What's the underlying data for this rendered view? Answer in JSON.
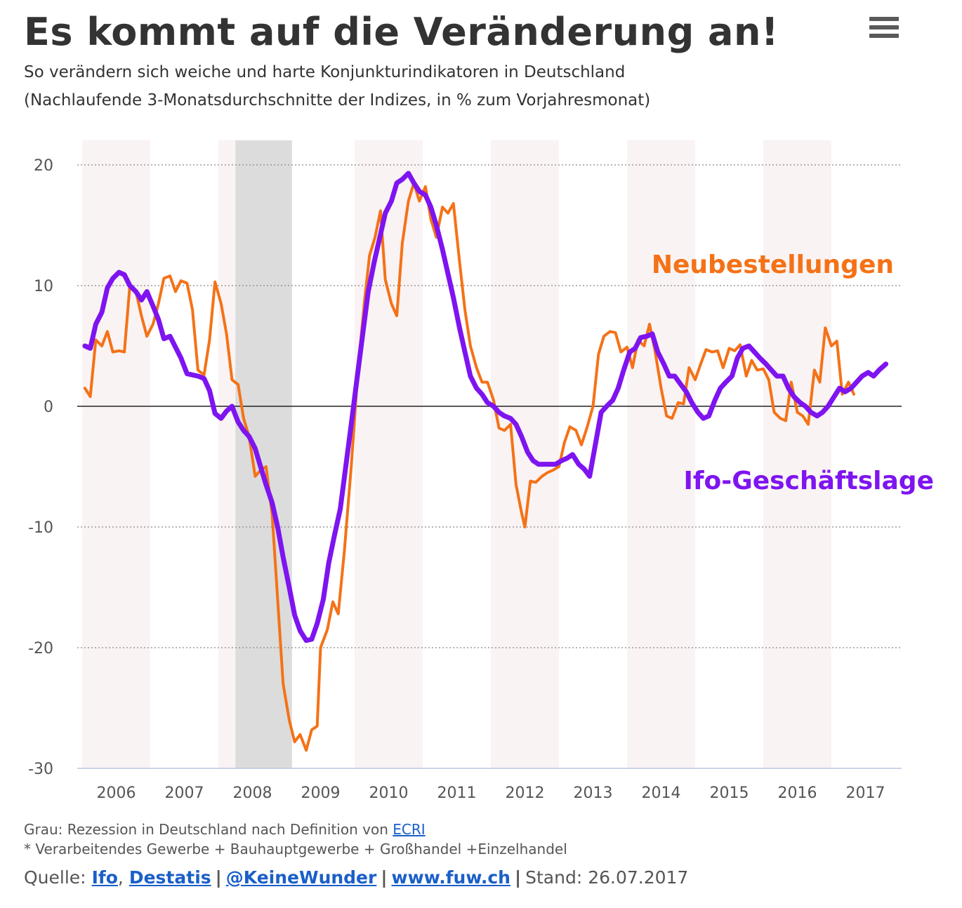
{
  "header": {
    "title": "Es kommt auf die Veränderung an!",
    "subtitle_line1": "So verändern sich weiche und harte Konjunkturindikatoren in Deutschland",
    "subtitle_line2": "(Nachlaufende 3-Monatsdurchschnitte der Indizes, in % zum Vorjahresmonat)"
  },
  "footer": {
    "note_prefix": "Grau: Rezession in Deutschland nach Definition von",
    "note_link": "ECRI",
    "footnote": "* Verarbeitendes Gewerbe + Bauhauptgewerbe + Großhandel +Einzelhandel",
    "source_prefix": "Quelle:",
    "source_ifo": "Ifo",
    "source_destatis": "Destatis",
    "source_twitter": "@KeineWunder",
    "source_site": "www.fuw.ch",
    "sep": "|",
    "comma": ",",
    "stand": "Stand: 26.07.2017"
  },
  "chart_data": {
    "type": "line",
    "title": "Es kommt auf die Veränderung an!",
    "xlabel": "",
    "ylabel": "",
    "ylim": [
      -30,
      20
    ],
    "xlim": [
      2005.5,
      2017.6
    ],
    "yticks": [
      20,
      10,
      0,
      -10,
      -20,
      -30
    ],
    "year_labels": [
      "2006",
      "2007",
      "2008",
      "2009",
      "2010",
      "2011",
      "2012",
      "2013",
      "2014",
      "2015",
      "2016",
      "2017"
    ],
    "recession": {
      "start": 2007.75,
      "end": 2008.58,
      "label": "Rezession (ECRI)"
    },
    "colors": {
      "neubestellungen": "#f47217",
      "ifo": "#7e14f0",
      "recession": "#dcdcdc",
      "band": "#faf3f3"
    },
    "series": [
      {
        "name": "Neubestellungen",
        "label": "Neubestellungen",
        "points": [
          [
            2005.54,
            1.5
          ],
          [
            2005.62,
            0.8
          ],
          [
            2005.7,
            5.5
          ],
          [
            2005.79,
            5.0
          ],
          [
            2005.87,
            6.2
          ],
          [
            2005.95,
            4.5
          ],
          [
            2006.04,
            4.6
          ],
          [
            2006.12,
            4.5
          ],
          [
            2006.2,
            10.0
          ],
          [
            2006.29,
            9.5
          ],
          [
            2006.37,
            7.5
          ],
          [
            2006.45,
            5.8
          ],
          [
            2006.54,
            6.8
          ],
          [
            2006.62,
            8.5
          ],
          [
            2006.7,
            10.6
          ],
          [
            2006.79,
            10.8
          ],
          [
            2006.87,
            9.5
          ],
          [
            2006.95,
            10.4
          ],
          [
            2007.04,
            10.2
          ],
          [
            2007.12,
            8.0
          ],
          [
            2007.2,
            3.0
          ],
          [
            2007.29,
            2.6
          ],
          [
            2007.37,
            5.5
          ],
          [
            2007.45,
            10.3
          ],
          [
            2007.54,
            8.5
          ],
          [
            2007.62,
            6.0
          ],
          [
            2007.7,
            2.2
          ],
          [
            2007.79,
            1.8
          ],
          [
            2007.87,
            -1.0
          ],
          [
            2007.95,
            -2.5
          ],
          [
            2008.04,
            -5.8
          ],
          [
            2008.12,
            -5.3
          ],
          [
            2008.2,
            -5.0
          ],
          [
            2008.29,
            -9.0
          ],
          [
            2008.37,
            -16.0
          ],
          [
            2008.45,
            -23.0
          ],
          [
            2008.54,
            -26.0
          ],
          [
            2008.62,
            -27.8
          ],
          [
            2008.7,
            -27.2
          ],
          [
            2008.79,
            -28.5
          ],
          [
            2008.87,
            -26.8
          ],
          [
            2008.95,
            -26.5
          ],
          [
            2009.0,
            -20.0
          ],
          [
            2009.1,
            -18.5
          ],
          [
            2009.18,
            -16.2
          ],
          [
            2009.26,
            -17.2
          ],
          [
            2009.35,
            -12.0
          ],
          [
            2009.45,
            -5.0
          ],
          [
            2009.55,
            3.0
          ],
          [
            2009.65,
            9.0
          ],
          [
            2009.72,
            12.5
          ],
          [
            2009.8,
            14.0
          ],
          [
            2009.88,
            16.2
          ],
          [
            2009.95,
            10.5
          ],
          [
            2010.04,
            8.5
          ],
          [
            2010.12,
            7.5
          ],
          [
            2010.2,
            13.5
          ],
          [
            2010.29,
            17.0
          ],
          [
            2010.37,
            18.5
          ],
          [
            2010.45,
            17.0
          ],
          [
            2010.54,
            18.2
          ],
          [
            2010.62,
            15.5
          ],
          [
            2010.7,
            14.0
          ],
          [
            2010.79,
            16.5
          ],
          [
            2010.87,
            16.0
          ],
          [
            2010.95,
            16.8
          ],
          [
            2011.04,
            12.0
          ],
          [
            2011.12,
            8.0
          ],
          [
            2011.2,
            5.0
          ],
          [
            2011.29,
            3.2
          ],
          [
            2011.37,
            2.0
          ],
          [
            2011.45,
            2.0
          ],
          [
            2011.54,
            0.5
          ],
          [
            2011.62,
            -1.8
          ],
          [
            2011.7,
            -2.0
          ],
          [
            2011.79,
            -1.5
          ],
          [
            2011.87,
            -6.5
          ],
          [
            2011.95,
            -8.8
          ],
          [
            2012.0,
            -10.0
          ],
          [
            2012.08,
            -6.2
          ],
          [
            2012.16,
            -6.3
          ],
          [
            2012.25,
            -5.8
          ],
          [
            2012.33,
            -5.5
          ],
          [
            2012.41,
            -5.3
          ],
          [
            2012.5,
            -5.0
          ],
          [
            2012.58,
            -3.0
          ],
          [
            2012.66,
            -1.7
          ],
          [
            2012.75,
            -2.0
          ],
          [
            2012.83,
            -3.2
          ],
          [
            2012.91,
            -1.8
          ],
          [
            2013.0,
            0.0
          ],
          [
            2013.08,
            4.3
          ],
          [
            2013.16,
            5.8
          ],
          [
            2013.25,
            6.2
          ],
          [
            2013.33,
            6.1
          ],
          [
            2013.41,
            4.5
          ],
          [
            2013.5,
            4.9
          ],
          [
            2013.58,
            3.2
          ],
          [
            2013.66,
            5.5
          ],
          [
            2013.75,
            5.0
          ],
          [
            2013.83,
            6.8
          ],
          [
            2013.91,
            4.6
          ],
          [
            2014.0,
            1.5
          ],
          [
            2014.08,
            -0.8
          ],
          [
            2014.16,
            -1.0
          ],
          [
            2014.25,
            0.3
          ],
          [
            2014.33,
            0.2
          ],
          [
            2014.41,
            3.2
          ],
          [
            2014.5,
            2.2
          ],
          [
            2014.58,
            3.5
          ],
          [
            2014.66,
            4.7
          ],
          [
            2014.75,
            4.5
          ],
          [
            2014.83,
            4.6
          ],
          [
            2014.91,
            3.2
          ],
          [
            2015.0,
            4.8
          ],
          [
            2015.08,
            4.6
          ],
          [
            2015.16,
            5.1
          ],
          [
            2015.25,
            2.5
          ],
          [
            2015.33,
            3.8
          ],
          [
            2015.41,
            3.0
          ],
          [
            2015.5,
            3.1
          ],
          [
            2015.58,
            2.2
          ],
          [
            2015.66,
            -0.5
          ],
          [
            2015.75,
            -1.0
          ],
          [
            2015.83,
            -1.2
          ],
          [
            2015.91,
            2.0
          ],
          [
            2016.0,
            -0.5
          ],
          [
            2016.08,
            -0.8
          ],
          [
            2016.16,
            -1.5
          ],
          [
            2016.25,
            3.0
          ],
          [
            2016.33,
            2.0
          ],
          [
            2016.41,
            6.5
          ],
          [
            2016.5,
            5.0
          ],
          [
            2016.58,
            5.4
          ],
          [
            2016.66,
            1.0
          ],
          [
            2016.75,
            2.0
          ],
          [
            2016.83,
            1.0
          ]
        ]
      },
      {
        "name": "Ifo-Geschäftslage",
        "label": "Ifo-Geschäftslage",
        "points": [
          [
            2005.54,
            5.0
          ],
          [
            2005.62,
            4.8
          ],
          [
            2005.7,
            6.8
          ],
          [
            2005.79,
            7.8
          ],
          [
            2005.87,
            9.8
          ],
          [
            2005.95,
            10.6
          ],
          [
            2006.04,
            11.1
          ],
          [
            2006.12,
            10.9
          ],
          [
            2006.2,
            10.0
          ],
          [
            2006.29,
            9.5
          ],
          [
            2006.37,
            8.8
          ],
          [
            2006.45,
            9.5
          ],
          [
            2006.54,
            8.3
          ],
          [
            2006.62,
            7.2
          ],
          [
            2006.7,
            5.6
          ],
          [
            2006.79,
            5.8
          ],
          [
            2006.87,
            4.9
          ],
          [
            2006.95,
            4.0
          ],
          [
            2007.04,
            2.7
          ],
          [
            2007.12,
            2.6
          ],
          [
            2007.2,
            2.5
          ],
          [
            2007.29,
            2.3
          ],
          [
            2007.37,
            1.3
          ],
          [
            2007.45,
            -0.6
          ],
          [
            2007.54,
            -1.0
          ],
          [
            2007.62,
            -0.4
          ],
          [
            2007.7,
            0.0
          ],
          [
            2007.79,
            -1.3
          ],
          [
            2007.87,
            -2.0
          ],
          [
            2007.95,
            -2.5
          ],
          [
            2008.04,
            -3.5
          ],
          [
            2008.12,
            -5.0
          ],
          [
            2008.2,
            -6.5
          ],
          [
            2008.29,
            -8.0
          ],
          [
            2008.37,
            -10.0
          ],
          [
            2008.45,
            -12.5
          ],
          [
            2008.54,
            -15.0
          ],
          [
            2008.62,
            -17.3
          ],
          [
            2008.7,
            -18.6
          ],
          [
            2008.79,
            -19.4
          ],
          [
            2008.87,
            -19.3
          ],
          [
            2008.95,
            -18.0
          ],
          [
            2009.04,
            -16.0
          ],
          [
            2009.12,
            -13.0
          ],
          [
            2009.2,
            -10.8
          ],
          [
            2009.29,
            -8.5
          ],
          [
            2009.37,
            -5.0
          ],
          [
            2009.45,
            -1.5
          ],
          [
            2009.54,
            2.5
          ],
          [
            2009.62,
            6.0
          ],
          [
            2009.7,
            9.5
          ],
          [
            2009.79,
            12.0
          ],
          [
            2009.87,
            14.0
          ],
          [
            2009.95,
            16.0
          ],
          [
            2010.04,
            17.0
          ],
          [
            2010.12,
            18.5
          ],
          [
            2010.2,
            18.8
          ],
          [
            2010.29,
            19.3
          ],
          [
            2010.37,
            18.5
          ],
          [
            2010.45,
            17.8
          ],
          [
            2010.54,
            17.5
          ],
          [
            2010.62,
            16.5
          ],
          [
            2010.7,
            15.0
          ],
          [
            2010.79,
            13.0
          ],
          [
            2010.87,
            11.0
          ],
          [
            2010.95,
            9.0
          ],
          [
            2011.04,
            6.5
          ],
          [
            2011.12,
            4.5
          ],
          [
            2011.2,
            2.5
          ],
          [
            2011.29,
            1.5
          ],
          [
            2011.37,
            1.0
          ],
          [
            2011.45,
            0.3
          ],
          [
            2011.54,
            0.0
          ],
          [
            2011.62,
            -0.5
          ],
          [
            2011.7,
            -0.8
          ],
          [
            2011.79,
            -1.0
          ],
          [
            2011.87,
            -1.5
          ],
          [
            2011.95,
            -2.5
          ],
          [
            2012.04,
            -3.8
          ],
          [
            2012.12,
            -4.5
          ],
          [
            2012.2,
            -4.8
          ],
          [
            2012.29,
            -4.8
          ],
          [
            2012.37,
            -4.8
          ],
          [
            2012.45,
            -4.8
          ],
          [
            2012.54,
            -4.5
          ],
          [
            2012.62,
            -4.3
          ],
          [
            2012.7,
            -4.0
          ],
          [
            2012.79,
            -4.8
          ],
          [
            2012.87,
            -5.2
          ],
          [
            2012.95,
            -5.8
          ],
          [
            2013.04,
            -3.0
          ],
          [
            2013.12,
            -0.5
          ],
          [
            2013.2,
            0.0
          ],
          [
            2013.29,
            0.5
          ],
          [
            2013.37,
            1.5
          ],
          [
            2013.45,
            3.0
          ],
          [
            2013.54,
            4.5
          ],
          [
            2013.62,
            4.8
          ],
          [
            2013.7,
            5.7
          ],
          [
            2013.79,
            5.8
          ],
          [
            2013.87,
            6.0
          ],
          [
            2013.95,
            4.5
          ],
          [
            2014.04,
            3.5
          ],
          [
            2014.12,
            2.5
          ],
          [
            2014.2,
            2.5
          ],
          [
            2014.29,
            1.8
          ],
          [
            2014.37,
            1.2
          ],
          [
            2014.45,
            0.3
          ],
          [
            2014.54,
            -0.5
          ],
          [
            2014.62,
            -1.0
          ],
          [
            2014.7,
            -0.8
          ],
          [
            2014.79,
            0.5
          ],
          [
            2014.87,
            1.5
          ],
          [
            2014.95,
            2.0
          ],
          [
            2015.04,
            2.5
          ],
          [
            2015.12,
            4.0
          ],
          [
            2015.2,
            4.8
          ],
          [
            2015.29,
            5.0
          ],
          [
            2015.37,
            4.5
          ],
          [
            2015.45,
            4.0
          ],
          [
            2015.54,
            3.5
          ],
          [
            2015.62,
            3.0
          ],
          [
            2015.7,
            2.5
          ],
          [
            2015.79,
            2.5
          ],
          [
            2015.87,
            1.5
          ],
          [
            2015.95,
            0.8
          ],
          [
            2016.04,
            0.3
          ],
          [
            2016.12,
            0.0
          ],
          [
            2016.2,
            -0.5
          ],
          [
            2016.29,
            -0.8
          ],
          [
            2016.37,
            -0.5
          ],
          [
            2016.45,
            0.0
          ],
          [
            2016.54,
            0.8
          ],
          [
            2016.62,
            1.5
          ],
          [
            2016.7,
            1.2
          ],
          [
            2016.79,
            1.5
          ],
          [
            2016.87,
            2.0
          ],
          [
            2016.95,
            2.5
          ],
          [
            2017.04,
            2.8
          ],
          [
            2017.12,
            2.5
          ],
          [
            2017.2,
            3.0
          ],
          [
            2017.3,
            3.5
          ]
        ]
      }
    ]
  }
}
